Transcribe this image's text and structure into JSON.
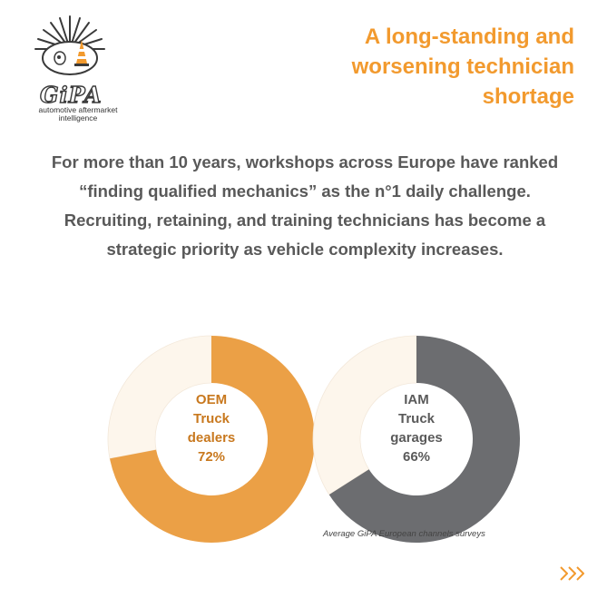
{
  "logo": {
    "brand": "GiPA",
    "tagline_line1": "automotive aftermarket",
    "tagline_line2": "intelligence"
  },
  "headline": {
    "line1": "A long-standing and",
    "line2": "worsening technician",
    "line3": "shortage"
  },
  "body": {
    "paragraph1": "For more than 10 years, workshops across Europe have ranked “finding qualified mechanics” as the n°1 daily challenge.",
    "paragraph2": "Recruiting, retaining, and training technicians has become a strategic priority as vehicle complexity increases."
  },
  "chart_data": [
    {
      "type": "pie",
      "categories": [
        "OEM Truck dealers",
        ""
      ],
      "values": [
        72,
        28
      ],
      "colors": [
        "#eba046",
        "#fdf6ec"
      ],
      "label_lines": [
        "OEM",
        "Truck",
        "dealers",
        "72%"
      ],
      "label_color": "#c8781e"
    },
    {
      "type": "pie",
      "categories": [
        "IAM Truck garages",
        ""
      ],
      "values": [
        66,
        34
      ],
      "colors": [
        "#6c6d70",
        "#fdf6ec"
      ],
      "label_lines": [
        "IAM",
        "Truck",
        "garages",
        "66%"
      ],
      "label_color": "#5a5a5a"
    }
  ],
  "source_note": "Average GiPA European channels surveys",
  "accent_color": "#f29a2e",
  "nav": {
    "next_icon": "double-chevron-right-icon"
  }
}
